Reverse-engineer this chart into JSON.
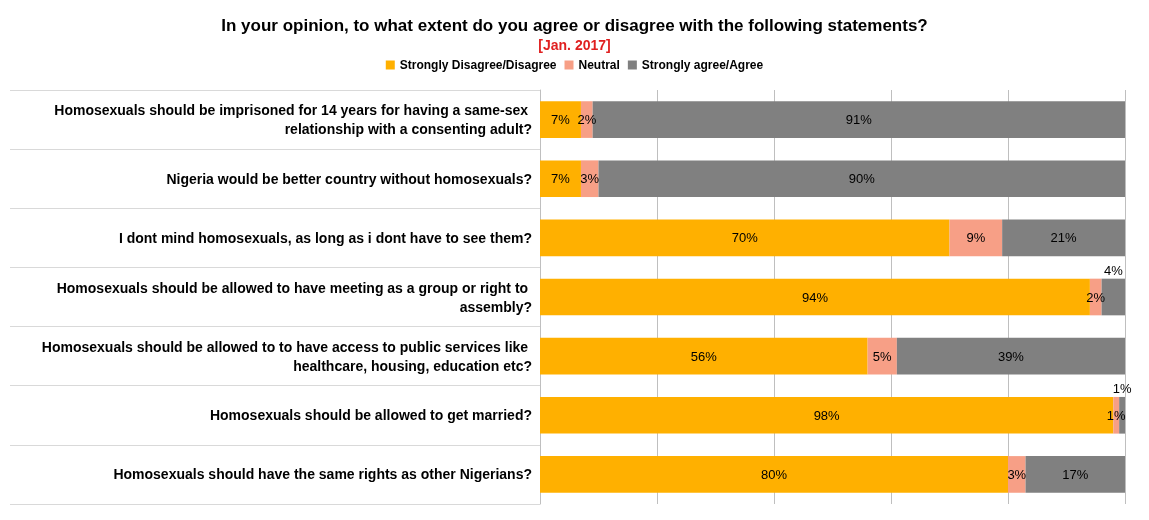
{
  "chart_data": {
    "type": "bar",
    "orientation": "horizontal",
    "stacked": true,
    "title": "In your opinion, to what extent do you agree or disagree with the following statements?",
    "subtitle": "[Jan. 2017]",
    "categories": [
      "Homosexuals should be imprisoned for 14 years for having a same-sex relationship with a consenting adult?",
      "Nigeria would be better country without homosexuals?",
      "I dont mind homosexuals, as long as i dont have to see them?",
      "Homosexuals should be allowed to have meeting as a group or right to assembly?",
      "Homosexuals should be allowed to to have access to public services like healthcare, housing, education etc?",
      "Homosexuals should be allowed to get married?",
      "Homosexuals should have the same rights as other Nigerians?"
    ],
    "series": [
      {
        "name": "Strongly Disagree/Disagree",
        "color": "#ffb000",
        "values": [
          7,
          7,
          70,
          94,
          56,
          98,
          80
        ],
        "value_labels": [
          "7%",
          "7%",
          "70%",
          "94%",
          "56%",
          "98%",
          "80%"
        ]
      },
      {
        "name": "Neutral",
        "color": "#f79f86",
        "values": [
          2,
          3,
          9,
          2,
          5,
          1,
          3
        ],
        "value_labels": [
          "2%",
          "3%",
          "9%",
          "2%",
          "5%",
          "1%",
          "3%"
        ]
      },
      {
        "name": "Strongly agree/Agree",
        "color": "#808080",
        "values": [
          91,
          90,
          21,
          4,
          39,
          1,
          17
        ],
        "value_labels": [
          "91%",
          "90%",
          "21%",
          "4%",
          "39%",
          "1%",
          "17%"
        ]
      }
    ],
    "xlim": [
      0,
      100
    ],
    "xticks": [
      {
        "value": 0,
        "label": null
      },
      {
        "value": 20,
        "label": null
      },
      {
        "value": 40,
        "label": null
      },
      {
        "value": 60,
        "label": null
      },
      {
        "value": 80,
        "label": null
      },
      {
        "value": 100,
        "label": null
      }
    ],
    "grid": "x",
    "legend": "top",
    "tick_labels": "y"
  }
}
